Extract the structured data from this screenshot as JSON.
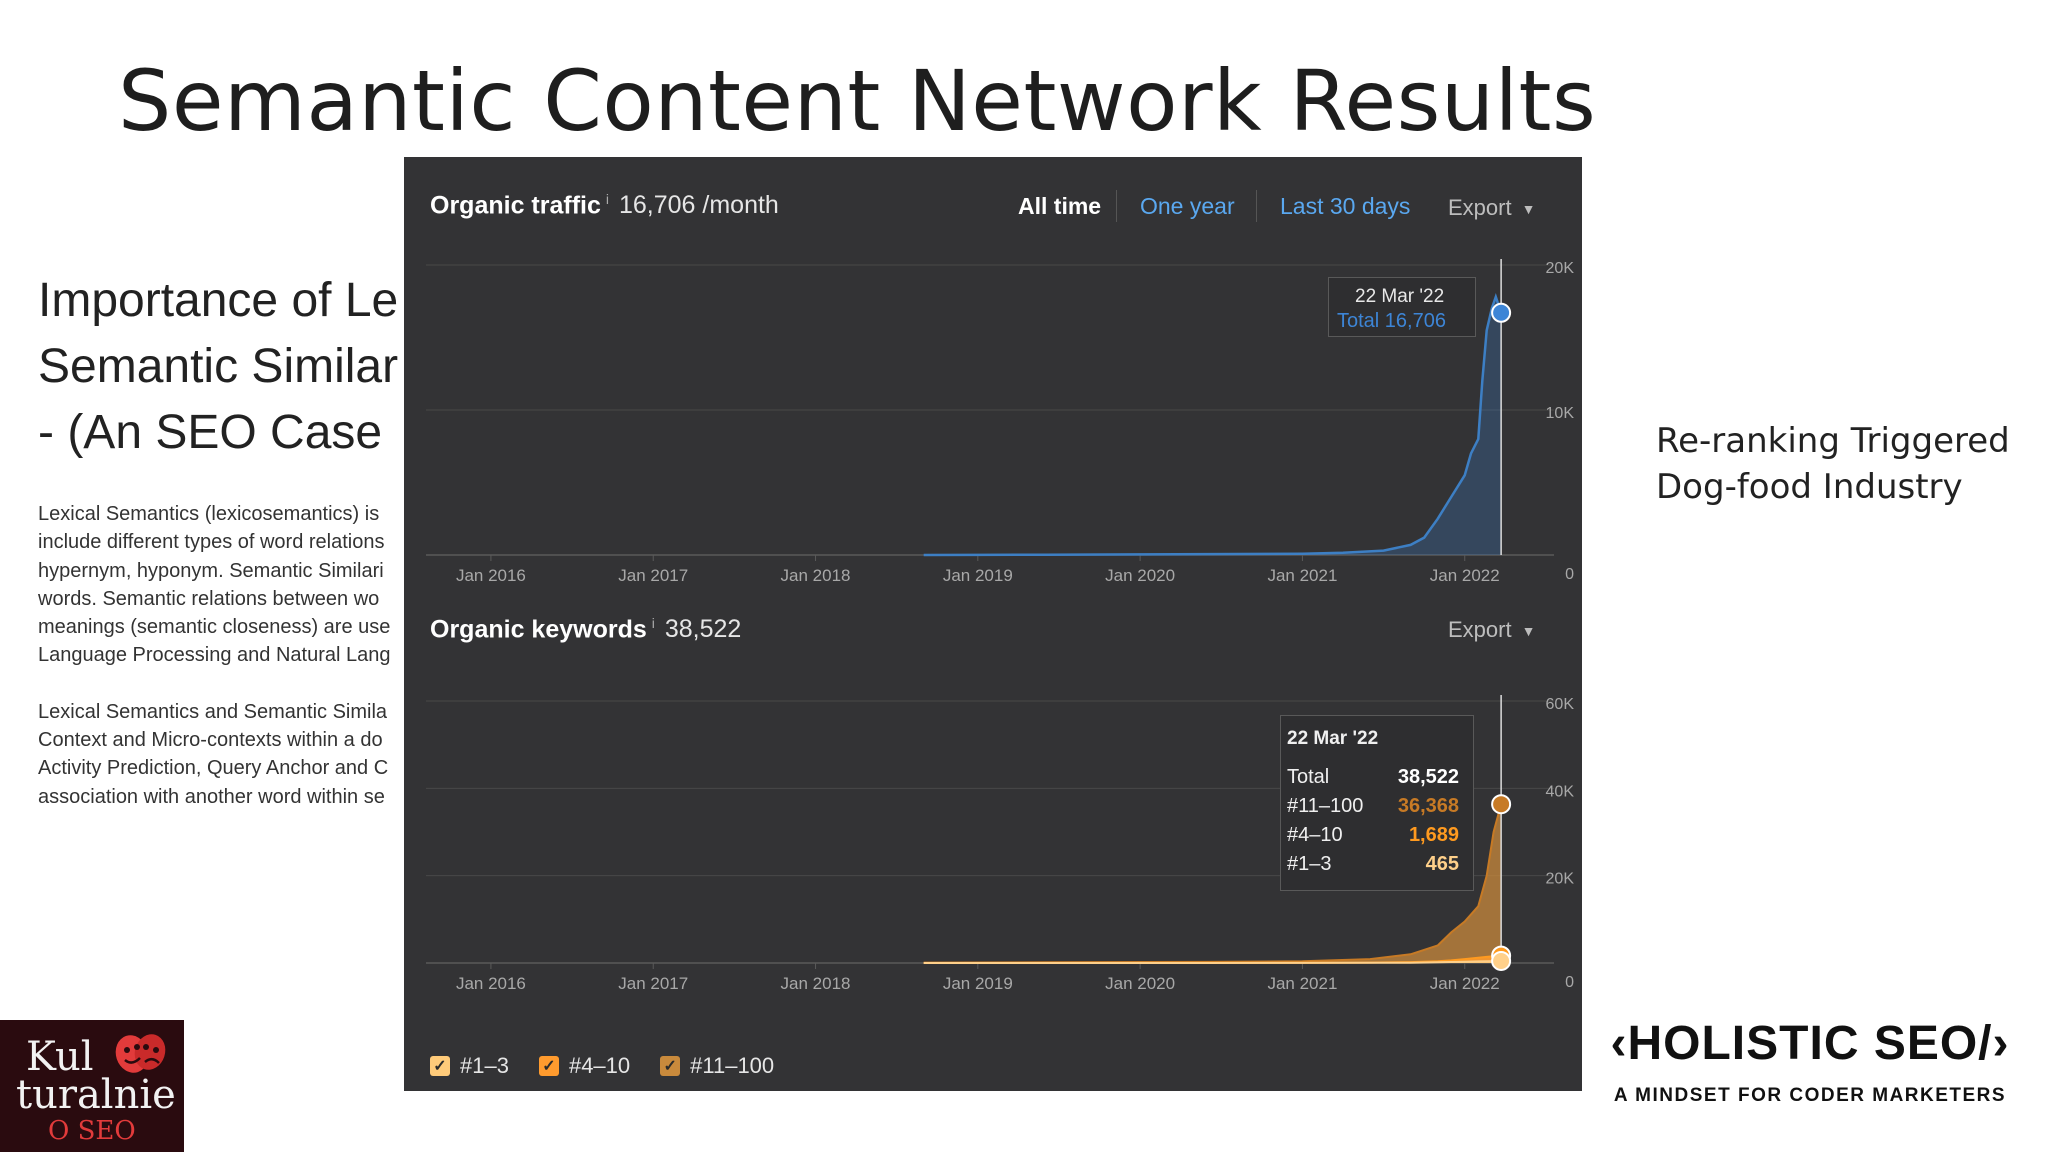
{
  "slide": {
    "title": "Semantic Content Network Results",
    "background_article": {
      "heading_lines": [
        "Importance of Le",
        "Semantic Similar",
        "- (An SEO Case"
      ],
      "para1_lines": [
        "Lexical Semantics (lexicosemantics) is",
        "include different types of word relations",
        "hypernym, hyponym. Semantic Similari",
        "words. Semantic relations between wo",
        "meanings (semantic closeness) are use",
        "Language Processing and Natural Lang"
      ],
      "para2_lines": [
        "Lexical Semantics and Semantic Simila",
        "Context and Micro-contexts within a do",
        "Activity Prediction, Query Anchor and C",
        "association with another word within se"
      ]
    },
    "side_note": [
      "Re-ranking Triggered",
      "Dog-food Industry"
    ],
    "logo_left": {
      "line1": "Kul",
      "line2": "turalnie",
      "line3": "O SEO"
    },
    "logo_right": {
      "brand": "‹HOLISTIC SEO/›",
      "tagline": "A MINDSET FOR CODER MARKETERS"
    }
  },
  "panel": {
    "traffic": {
      "title": "Organic traffic",
      "info": "i",
      "value": "16,706 /month",
      "ranges": [
        "All time",
        "One year",
        "Last 30 days"
      ],
      "active_range": "All time",
      "export_label": "Export",
      "tooltip": {
        "date": "22 Mar '22",
        "total_text": "Total 16,706"
      }
    },
    "keywords": {
      "title": "Organic keywords",
      "info": "i",
      "value": "38,522",
      "export_label": "Export",
      "tooltip": {
        "date": "22 Mar '22",
        "rows": [
          {
            "label": "Total",
            "value": "38,522",
            "color": "#ffffff"
          },
          {
            "label": "#11–100",
            "value": "36,368",
            "color": "#c77a25"
          },
          {
            "label": "#4–10",
            "value": "1,689",
            "color": "#ff9a1f"
          },
          {
            "label": "#1–3",
            "value": "465",
            "color": "#ffd08a"
          }
        ]
      },
      "legend": [
        {
          "label": "#1–3",
          "color": "#ffcb7a"
        },
        {
          "label": "#4–10",
          "color": "#ff9b2e"
        },
        {
          "label": "#11–100",
          "color": "#c98a3c"
        }
      ]
    }
  },
  "chart_data": [
    {
      "type": "area",
      "title": "Organic traffic",
      "x": [
        "2018-09",
        "2019-01",
        "2019-06",
        "2020-01",
        "2020-06",
        "2021-01",
        "2021-04",
        "2021-07",
        "2021-09",
        "2021-10",
        "2021-11",
        "2021-12",
        "2022-01",
        "2022-01-15",
        "2022-02",
        "2022-02-10",
        "2022-02-20",
        "2022-03-01",
        "2022-03-10",
        "2022-03-22"
      ],
      "series": [
        {
          "values": [
            0,
            10,
            20,
            40,
            60,
            80,
            150,
            300,
            700,
            1200,
            2500,
            4000,
            5500,
            7000,
            8000,
            12000,
            15500,
            17000,
            17800,
            16706
          ]
        }
      ],
      "x_ticks": [
        "Jan 2016",
        "Jan 2017",
        "Jan 2018",
        "Jan 2019",
        "Jan 2020",
        "Jan 2021",
        "Jan 2022"
      ],
      "y_ticks": [
        "0",
        "10K",
        "20K"
      ],
      "ylim": [
        0,
        20000
      ],
      "color": "#3d7fc4"
    },
    {
      "type": "area",
      "title": "Organic keywords",
      "x": [
        "2018-09",
        "2019-06",
        "2020-06",
        "2021-01",
        "2021-06",
        "2021-09",
        "2021-11",
        "2021-12",
        "2022-01",
        "2022-02",
        "2022-02-20",
        "2022-03-05",
        "2022-03-22"
      ],
      "series": [
        {
          "name": "#1–3",
          "values": [
            0,
            5,
            10,
            20,
            40,
            80,
            150,
            220,
            300,
            360,
            400,
            440,
            465
          ]
        },
        {
          "name": "#4–10",
          "values": [
            0,
            10,
            20,
            40,
            100,
            200,
            400,
            600,
            900,
            1200,
            1400,
            1550,
            1689
          ]
        },
        {
          "name": "#11–100",
          "values": [
            100,
            150,
            250,
            400,
            900,
            2000,
            4000,
            7000,
            9500,
            13000,
            20000,
            30000,
            36368
          ]
        }
      ],
      "x_ticks": [
        "Jan 2016",
        "Jan 2017",
        "Jan 2018",
        "Jan 2019",
        "Jan 2020",
        "Jan 2021",
        "Jan 2022"
      ],
      "y_ticks": [
        "0",
        "20K",
        "40K",
        "60K"
      ],
      "ylim": [
        0,
        60000
      ],
      "legend": "bottom-left"
    }
  ]
}
